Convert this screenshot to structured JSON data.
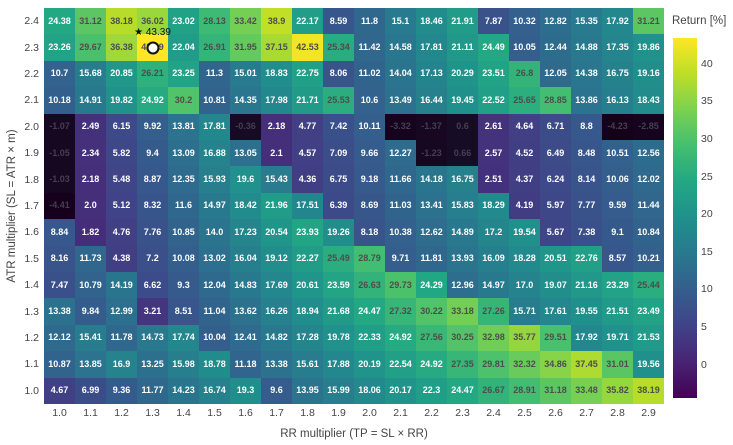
{
  "chart_data": {
    "type": "heatmap",
    "title": "",
    "xlabel": "RR multiplier (TP = SL × RR)",
    "ylabel": "ATR multiplier (SL = ATR × m)",
    "colorbar_title": "Return [%]",
    "colorbar_ticks": [
      0,
      5,
      10,
      15,
      20,
      25,
      30,
      35,
      40
    ],
    "colorscale": "viridis",
    "zmin": -4.41,
    "zmax": 43.39,
    "x": [
      1.0,
      1.1,
      1.2,
      1.3,
      1.4,
      1.5,
      1.6,
      1.7,
      1.8,
      1.9,
      2.0,
      2.1,
      2.2,
      2.3,
      2.4,
      2.5,
      2.6,
      2.7,
      2.8,
      2.9
    ],
    "y": [
      2.4,
      2.3,
      2.2,
      2.1,
      2.0,
      1.9,
      1.8,
      1.7,
      1.6,
      1.5,
      1.4,
      1.3,
      1.2,
      1.1,
      1.0
    ],
    "z": [
      [
        24.38,
        31.12,
        38.18,
        36.02,
        23.02,
        28.13,
        33.42,
        38.9,
        22.17,
        8.59,
        11.8,
        15.1,
        18.46,
        21.91,
        7.87,
        10.32,
        12.82,
        15.35,
        17.92,
        31.21
      ],
      [
        23.26,
        29.67,
        36.38,
        43.39,
        22.04,
        26.91,
        31.95,
        37.15,
        42.53,
        25.34,
        11.42,
        14.58,
        17.81,
        21.11,
        24.49,
        10.05,
        12.44,
        14.88,
        17.35,
        19.86
      ],
      [
        10.7,
        15.68,
        20.85,
        26.21,
        23.25,
        11.3,
        15.01,
        18.83,
        22.75,
        8.06,
        11.02,
        14.04,
        17.13,
        20.29,
        23.51,
        26.8,
        12.05,
        14.38,
        16.75,
        19.16
      ],
      [
        10.18,
        14.91,
        19.82,
        24.92,
        30.2,
        10.81,
        14.35,
        17.98,
        21.71,
        25.53,
        10.6,
        13.49,
        16.44,
        19.45,
        22.52,
        25.65,
        28.85,
        13.86,
        16.13,
        18.43
      ],
      [
        -1.07,
        2.49,
        6.15,
        9.92,
        13.81,
        17.81,
        -0.36,
        2.18,
        4.77,
        7.42,
        10.11,
        -3.32,
        -1.37,
        0.6,
        2.61,
        4.64,
        6.71,
        8.8,
        -4.23,
        -2.85
      ],
      [
        -1.05,
        2.34,
        5.82,
        9.4,
        13.09,
        16.88,
        13.05,
        2.1,
        4.57,
        7.09,
        9.66,
        12.27,
        -1.23,
        0.66,
        2.57,
        4.52,
        6.49,
        8.48,
        10.51,
        12.56
      ],
      [
        -1.03,
        2.18,
        5.48,
        8.87,
        12.35,
        15.93,
        19.6,
        15.43,
        4.36,
        6.75,
        9.18,
        11.66,
        14.18,
        16.75,
        2.51,
        4.37,
        6.24,
        8.14,
        10.06,
        12.02
      ],
      [
        -4.41,
        2.0,
        5.12,
        8.32,
        11.6,
        14.97,
        18.42,
        21.96,
        17.51,
        6.39,
        8.69,
        11.03,
        13.41,
        15.83,
        18.29,
        4.19,
        5.97,
        7.77,
        9.59,
        11.44
      ],
      [
        8.84,
        1.82,
        4.76,
        7.76,
        10.85,
        14.0,
        17.23,
        20.54,
        23.93,
        19.26,
        8.18,
        10.38,
        12.62,
        14.89,
        17.2,
        19.54,
        5.67,
        7.38,
        9.1,
        10.84
      ],
      [
        8.16,
        11.73,
        4.38,
        7.2,
        10.08,
        13.02,
        16.04,
        19.12,
        22.27,
        25.49,
        28.79,
        9.71,
        11.81,
        13.93,
        16.09,
        18.28,
        20.51,
        22.76,
        8.57,
        10.21
      ],
      [
        7.47,
        10.79,
        14.19,
        6.62,
        9.3,
        12.04,
        14.83,
        17.69,
        20.61,
        23.59,
        26.63,
        29.73,
        24.29,
        12.96,
        14.97,
        17.0,
        19.07,
        21.16,
        23.29,
        25.44
      ],
      [
        13.38,
        9.84,
        12.99,
        3.21,
        8.51,
        11.04,
        13.62,
        16.26,
        18.94,
        21.68,
        24.47,
        27.32,
        30.22,
        33.18,
        27.26,
        15.71,
        17.61,
        19.55,
        21.51,
        23.49
      ],
      [
        12.12,
        15.41,
        11.78,
        14.73,
        17.74,
        10.04,
        12.41,
        14.82,
        17.28,
        19.78,
        22.33,
        24.92,
        27.56,
        30.25,
        32.98,
        35.77,
        29.51,
        17.92,
        19.71,
        21.53
      ],
      [
        10.87,
        13.85,
        16.9,
        13.25,
        15.98,
        18.78,
        11.18,
        13.38,
        15.61,
        17.88,
        20.19,
        22.54,
        24.92,
        27.35,
        29.81,
        32.32,
        34.86,
        37.45,
        31.01,
        19.56
      ],
      [
        4.67,
        6.99,
        9.36,
        11.77,
        14.23,
        16.74,
        19.3,
        9.6,
        13.95,
        15.99,
        18.06,
        20.17,
        22.3,
        24.47,
        26.67,
        28.91,
        31.18,
        33.48,
        35.82,
        38.19
      ]
    ],
    "best": {
      "x": 1.3,
      "y": 2.3,
      "value": 43.39,
      "annotation_star": "★",
      "annotation_value": "43.39",
      "marker": "circle"
    }
  }
}
